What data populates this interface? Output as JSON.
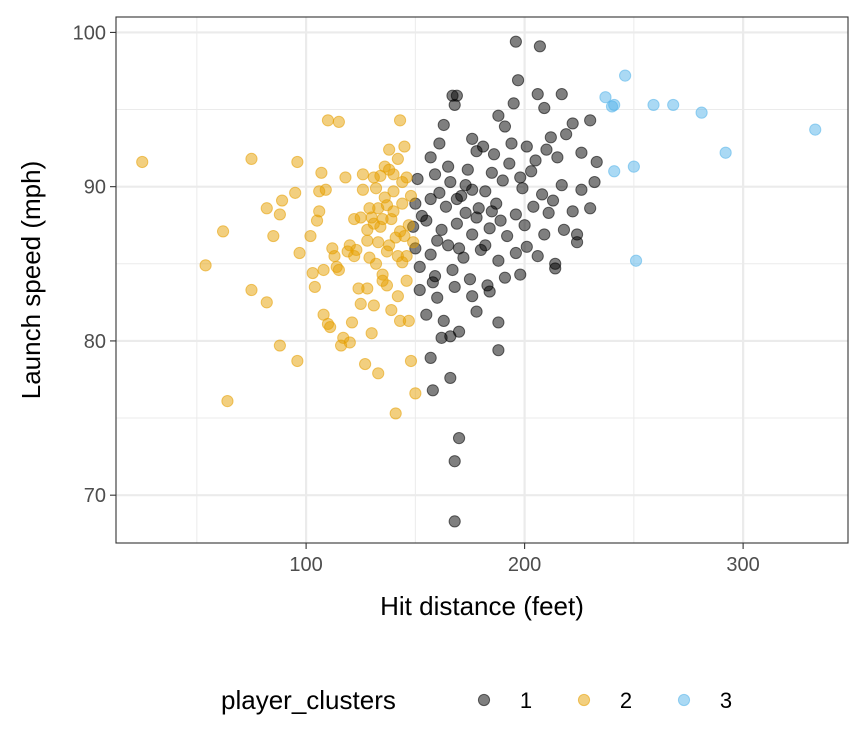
{
  "chart_data": {
    "type": "scatter",
    "xlabel": "Hit distance (feet)",
    "ylabel": "Launch speed (mph)",
    "xlim": [
      13,
      348
    ],
    "ylim": [
      66.9,
      101.0
    ],
    "x_ticks": [
      100,
      200,
      300
    ],
    "y_ticks": [
      70,
      80,
      90,
      100
    ],
    "grid": true,
    "legend": {
      "title": "player_clusters",
      "position": "bottom",
      "entries": [
        "1",
        "2",
        "3"
      ]
    },
    "series": [
      {
        "name": "1",
        "color": "#000000",
        "points": [
          [
            167,
            95.9
          ],
          [
            168,
            95.3
          ],
          [
            169,
            95.9
          ],
          [
            196,
            99.4
          ],
          [
            207,
            99.1
          ],
          [
            197,
            96.9
          ],
          [
            217,
            96.0
          ],
          [
            206,
            96.0
          ],
          [
            188,
            94.6
          ],
          [
            195,
            95.4
          ],
          [
            163,
            94.0
          ],
          [
            209,
            95.1
          ],
          [
            222,
            94.1
          ],
          [
            230,
            94.3
          ],
          [
            176,
            93.1
          ],
          [
            181,
            92.6
          ],
          [
            191,
            93.9
          ],
          [
            201,
            92.6
          ],
          [
            212,
            93.2
          ],
          [
            219,
            93.4
          ],
          [
            161,
            92.8
          ],
          [
            157,
            91.9
          ],
          [
            178,
            92.3
          ],
          [
            186,
            92.1
          ],
          [
            193,
            91.5
          ],
          [
            205,
            91.7
          ],
          [
            215,
            91.9
          ],
          [
            226,
            92.2
          ],
          [
            233,
            91.6
          ],
          [
            151,
            90.5
          ],
          [
            159,
            90.8
          ],
          [
            166,
            90.3
          ],
          [
            173,
            90.1
          ],
          [
            182,
            89.7
          ],
          [
            190,
            90.4
          ],
          [
            199,
            89.9
          ],
          [
            208,
            89.5
          ],
          [
            217,
            90.1
          ],
          [
            226,
            89.8
          ],
          [
            232,
            90.3
          ],
          [
            150,
            88.9
          ],
          [
            157,
            89.2
          ],
          [
            164,
            88.7
          ],
          [
            171,
            89.4
          ],
          [
            179,
            88.6
          ],
          [
            187,
            88.9
          ],
          [
            196,
            88.2
          ],
          [
            204,
            88.7
          ],
          [
            213,
            89.1
          ],
          [
            222,
            88.4
          ],
          [
            230,
            88.6
          ],
          [
            149,
            87.4
          ],
          [
            155,
            87.8
          ],
          [
            162,
            87.2
          ],
          [
            169,
            87.6
          ],
          [
            176,
            86.9
          ],
          [
            184,
            87.3
          ],
          [
            192,
            86.8
          ],
          [
            200,
            87.5
          ],
          [
            209,
            86.9
          ],
          [
            218,
            87.2
          ],
          [
            150,
            86.0
          ],
          [
            157,
            85.6
          ],
          [
            165,
            86.2
          ],
          [
            172,
            85.4
          ],
          [
            180,
            85.9
          ],
          [
            188,
            85.2
          ],
          [
            196,
            85.7
          ],
          [
            206,
            85.5
          ],
          [
            214,
            85.0
          ],
          [
            224,
            86.9
          ],
          [
            224,
            86.4
          ],
          [
            152,
            84.8
          ],
          [
            159,
            84.2
          ],
          [
            167,
            84.6
          ],
          [
            175,
            84.0
          ],
          [
            183,
            83.6
          ],
          [
            191,
            84.1
          ],
          [
            198,
            84.3
          ],
          [
            214,
            84.7
          ],
          [
            152,
            83.3
          ],
          [
            160,
            82.8
          ],
          [
            168,
            83.5
          ],
          [
            176,
            82.9
          ],
          [
            184,
            83.2
          ],
          [
            155,
            81.7
          ],
          [
            163,
            81.3
          ],
          [
            170,
            80.6
          ],
          [
            178,
            81.9
          ],
          [
            188,
            81.2
          ],
          [
            162,
            80.2
          ],
          [
            166,
            80.3
          ],
          [
            157,
            78.9
          ],
          [
            166,
            77.6
          ],
          [
            158,
            76.8
          ],
          [
            188,
            79.4
          ],
          [
            170,
            73.7
          ],
          [
            168,
            72.2
          ],
          [
            168,
            68.3
          ],
          [
            153,
            88.1
          ],
          [
            161,
            89.6
          ],
          [
            174,
            91.1
          ],
          [
            185,
            90.9
          ],
          [
            203,
            91.0
          ],
          [
            211,
            88.3
          ],
          [
            170,
            86.0
          ],
          [
            178,
            88.0
          ],
          [
            198,
            90.6
          ],
          [
            189,
            87.8
          ],
          [
            165,
            91.3
          ],
          [
            194,
            92.8
          ],
          [
            185,
            88.4
          ],
          [
            173,
            88.3
          ],
          [
            210,
            92.4
          ],
          [
            160,
            86.5
          ],
          [
            182,
            86.2
          ],
          [
            201,
            86.1
          ],
          [
            158,
            83.8
          ],
          [
            169,
            89.2
          ],
          [
            176,
            89.8
          ]
        ]
      },
      {
        "name": "2",
        "color": "#E69F00",
        "points": [
          [
            25,
            91.6
          ],
          [
            75,
            91.8
          ],
          [
            96,
            91.6
          ],
          [
            54,
            84.9
          ],
          [
            62,
            87.1
          ],
          [
            64,
            76.1
          ],
          [
            75,
            83.3
          ],
          [
            82,
            82.5
          ],
          [
            82,
            88.6
          ],
          [
            89,
            89.1
          ],
          [
            85,
            86.8
          ],
          [
            88,
            88.2
          ],
          [
            88,
            79.7
          ],
          [
            96,
            78.7
          ],
          [
            95,
            89.6
          ],
          [
            97,
            85.7
          ],
          [
            102,
            86.8
          ],
          [
            103,
            84.4
          ],
          [
            104,
            83.5
          ],
          [
            105,
            87.8
          ],
          [
            106,
            89.7
          ],
          [
            106,
            88.4
          ],
          [
            107,
            90.9
          ],
          [
            108,
            84.6
          ],
          [
            109,
            89.8
          ],
          [
            108,
            81.7
          ],
          [
            110,
            94.3
          ],
          [
            110,
            81.1
          ],
          [
            111,
            80.9
          ],
          [
            112,
            86.0
          ],
          [
            113,
            85.5
          ],
          [
            114,
            84.8
          ],
          [
            115,
            84.6
          ],
          [
            115,
            94.2
          ],
          [
            116,
            79.7
          ],
          [
            117,
            80.2
          ],
          [
            118,
            90.6
          ],
          [
            119,
            85.8
          ],
          [
            120,
            86.2
          ],
          [
            121,
            81.2
          ],
          [
            122,
            87.9
          ],
          [
            122,
            85.5
          ],
          [
            123,
            85.9
          ],
          [
            124,
            83.4
          ],
          [
            125,
            82.4
          ],
          [
            126,
            89.8
          ],
          [
            126,
            90.8
          ],
          [
            127,
            78.5
          ],
          [
            128,
            87.2
          ],
          [
            128,
            86.5
          ],
          [
            128,
            83.4
          ],
          [
            129,
            88.6
          ],
          [
            130,
            88.0
          ],
          [
            130,
            80.5
          ],
          [
            131,
            87.6
          ],
          [
            131,
            82.3
          ],
          [
            132,
            89.9
          ],
          [
            132,
            85.0
          ],
          [
            133,
            88.6
          ],
          [
            133,
            77.9
          ],
          [
            134,
            90.7
          ],
          [
            134,
            87.4
          ],
          [
            135,
            87.9
          ],
          [
            135,
            84.3
          ],
          [
            136,
            91.3
          ],
          [
            136,
            89.3
          ],
          [
            137,
            88.8
          ],
          [
            137,
            85.8
          ],
          [
            138,
            92.4
          ],
          [
            138,
            86.2
          ],
          [
            139,
            87.9
          ],
          [
            139,
            82.0
          ],
          [
            140,
            90.8
          ],
          [
            140,
            88.4
          ],
          [
            141,
            86.7
          ],
          [
            141,
            75.3
          ],
          [
            142,
            91.8
          ],
          [
            142,
            85.5
          ],
          [
            143,
            87.1
          ],
          [
            143,
            94.3
          ],
          [
            143,
            81.3
          ],
          [
            144,
            88.9
          ],
          [
            144,
            85.1
          ],
          [
            145,
            92.6
          ],
          [
            145,
            86.8
          ],
          [
            146,
            90.6
          ],
          [
            146,
            83.9
          ],
          [
            147,
            87.5
          ],
          [
            147,
            81.3
          ],
          [
            148,
            89.4
          ],
          [
            148,
            78.7
          ],
          [
            149,
            86.4
          ],
          [
            150,
            76.6
          ],
          [
            144,
            90.3
          ],
          [
            137,
            83.6
          ],
          [
            133,
            86.4
          ],
          [
            129,
            85.4
          ],
          [
            140,
            89.7
          ],
          [
            146,
            85.5
          ],
          [
            138,
            91.1
          ],
          [
            125,
            88.0
          ],
          [
            120,
            79.9
          ],
          [
            131,
            90.6
          ],
          [
            142,
            82.9
          ],
          [
            135,
            83.9
          ]
        ]
      },
      {
        "name": "3",
        "color": "#56B4E9",
        "points": [
          [
            246,
            97.2
          ],
          [
            237,
            95.8
          ],
          [
            240,
            95.2
          ],
          [
            241,
            95.3
          ],
          [
            259,
            95.3
          ],
          [
            268,
            95.3
          ],
          [
            281,
            94.8
          ],
          [
            333,
            93.7
          ],
          [
            292,
            92.2
          ],
          [
            250,
            91.3
          ],
          [
            241,
            91.0
          ],
          [
            251,
            85.2
          ]
        ]
      }
    ]
  }
}
